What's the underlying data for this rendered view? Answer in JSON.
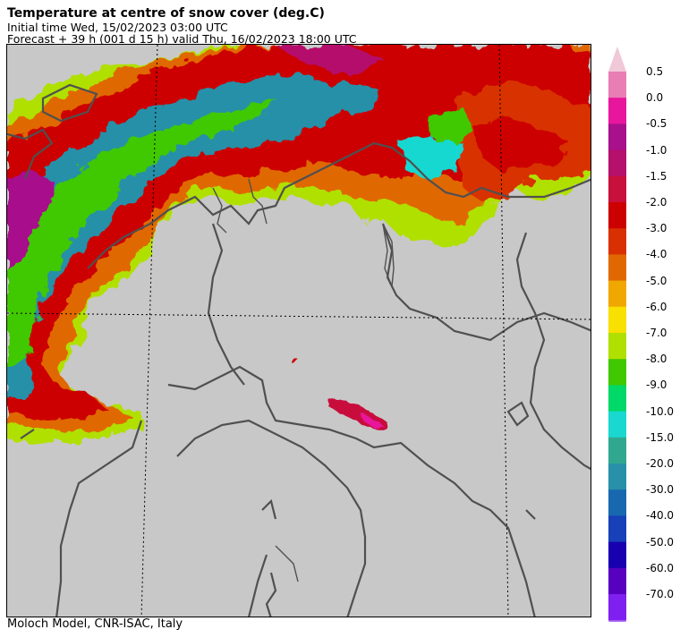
{
  "header": {
    "title": "Temperature at centre of snow cover (deg.C)",
    "initial_time": "Initial time  Wed, 15/02/2023  03:00 UTC",
    "forecast": "Forecast  +  39 h  (001 d 15 h)  valid Thu, 16/02/2023 18:00 UTC"
  },
  "footer": {
    "credit": "Moloch Model, CNR-ISAC, Italy"
  },
  "legend": {
    "classes": [
      {
        "label": "0.5",
        "color": "#e87eb4"
      },
      {
        "label": "0.0",
        "color": "#e8169c"
      },
      {
        "label": "-0.5",
        "color": "#a8108c"
      },
      {
        "label": "-1.0",
        "color": "#b4106c"
      },
      {
        "label": "-1.5",
        "color": "#c8103c"
      },
      {
        "label": "-2.0",
        "color": "#cc0000"
      },
      {
        "label": "-3.0",
        "color": "#d83000"
      },
      {
        "label": "-4.0",
        "color": "#e06800"
      },
      {
        "label": "-5.0",
        "color": "#f0a800"
      },
      {
        "label": "-6.0",
        "color": "#f8e000"
      },
      {
        "label": "-7.0",
        "color": "#b0e000"
      },
      {
        "label": "-8.0",
        "color": "#40c800"
      },
      {
        "label": "-9.0",
        "color": "#00d868"
      },
      {
        "label": "-10.0",
        "color": "#18d8d0"
      },
      {
        "label": "-15.0",
        "color": "#30a890"
      },
      {
        "label": "-20.0",
        "color": "#2890a8"
      },
      {
        "label": "-30.0",
        "color": "#1868b0"
      },
      {
        "label": "-40.0",
        "color": "#1840b8"
      },
      {
        "label": "-50.0",
        "color": "#1800b0"
      },
      {
        "label": "-60.0",
        "color": "#5800c0"
      },
      {
        "label": "-70.0",
        "color": "#8020f0"
      }
    ],
    "top_triangle_color": "#f0c8d8",
    "bottom_triangle_color": "#b070f0"
  },
  "map": {
    "land_color": "#c8c8c8",
    "boundary_color": "#505050"
  }
}
